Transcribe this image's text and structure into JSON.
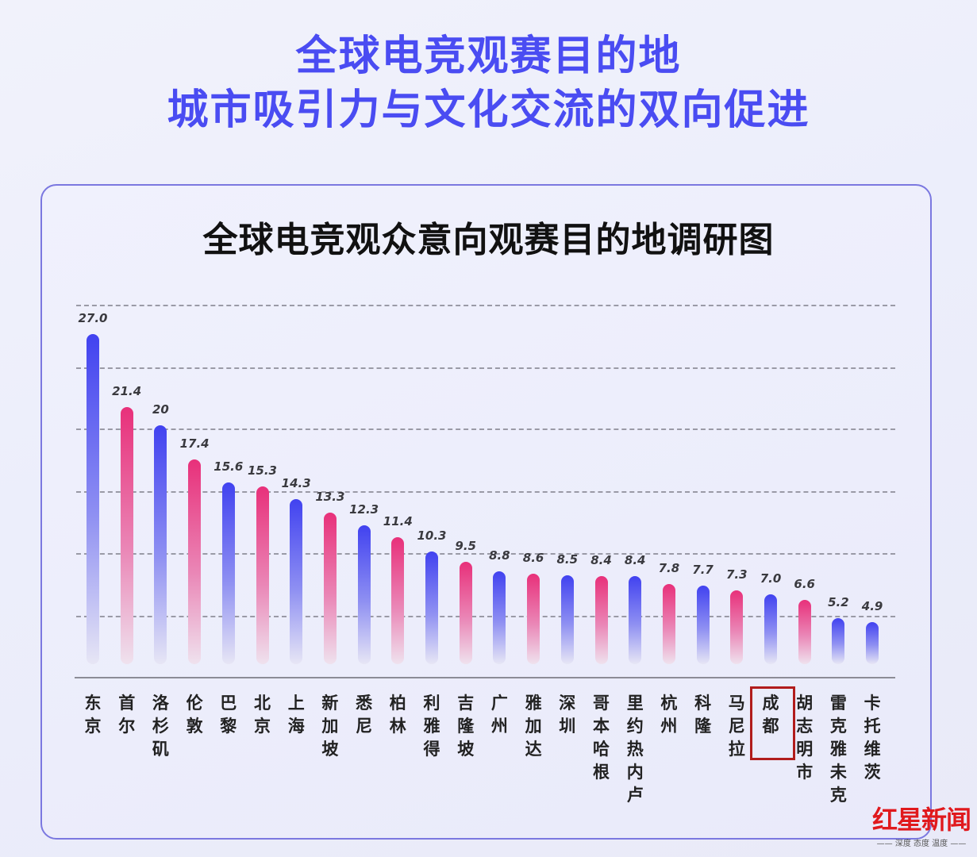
{
  "header": {
    "title_line1": "全球电竞观赛目的地",
    "title_line2": "城市吸引力与文化交流的双向促进"
  },
  "colors": {
    "title": "#4a4cf2",
    "bar_blue": "#4142f0",
    "bar_pink": "#e8307a",
    "panel_border": "#7b78e0",
    "highlight_box": "#b11c1c",
    "logo": "#e0191d"
  },
  "chart_data": {
    "type": "bar",
    "title": "全球电竞观众意向观赛目的地调研图",
    "xlabel": "",
    "ylabel": "",
    "grid": true,
    "legend": null,
    "categories": [
      "东京",
      "首尔",
      "洛杉矶",
      "伦敦",
      "巴黎",
      "北京",
      "上海",
      "新加坡",
      "悉尼",
      "柏林",
      "利雅得",
      "吉隆坡",
      "广州",
      "雅加达",
      "深圳",
      "哥本哈根",
      "里约热内卢",
      "杭州",
      "科隆",
      "马尼拉",
      "成都",
      "胡志明市",
      "雷克雅未克",
      "卡托维茨"
    ],
    "values": [
      27.0,
      21.4,
      20,
      17.4,
      15.6,
      15.3,
      14.3,
      13.3,
      12.3,
      11.4,
      10.3,
      9.5,
      8.8,
      8.6,
      8.5,
      8.4,
      8.4,
      7.8,
      7.7,
      7.3,
      7.0,
      6.6,
      5.2,
      4.9
    ],
    "value_labels": [
      "27.0",
      "21.4",
      "20",
      "17.4",
      "15.6",
      "15.3",
      "14.3",
      "13.3",
      "12.3",
      "11.4",
      "10.3",
      "9.5",
      "8.8",
      "8.6",
      "8.5",
      "8.4",
      "8.4",
      "7.8",
      "7.7",
      "7.3",
      "7.0",
      "6.6",
      "5.2",
      "4.9"
    ],
    "bar_colors": [
      "blue",
      "pink",
      "blue",
      "pink",
      "blue",
      "pink",
      "blue",
      "pink",
      "blue",
      "pink",
      "blue",
      "pink",
      "blue",
      "pink",
      "blue",
      "pink",
      "blue",
      "pink",
      "blue",
      "pink",
      "blue",
      "pink",
      "blue",
      "blue"
    ],
    "highlighted_category": "成都"
  },
  "watermark": {
    "brand": "红星新闻",
    "slogan": "—— 深度 态度 温度 ——"
  }
}
